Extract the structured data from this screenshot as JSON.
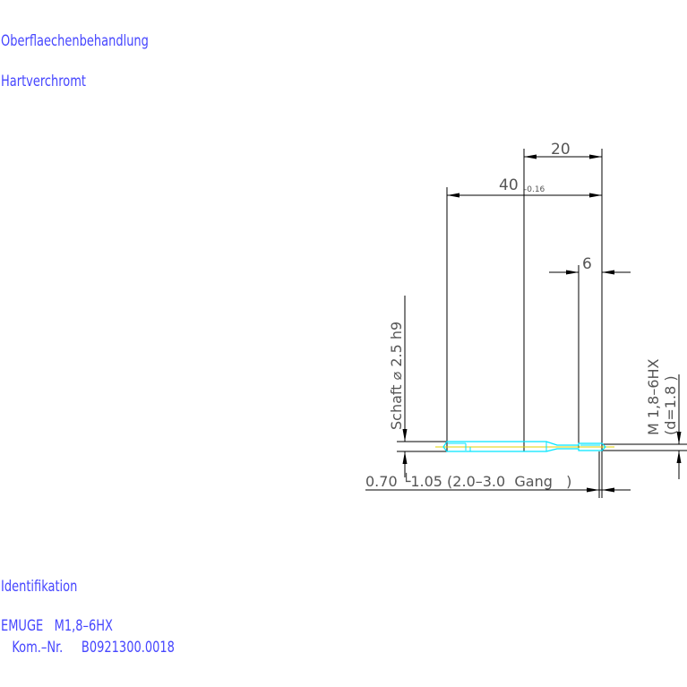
{
  "header": {
    "surface_label": "Oberflaechenbehandlung",
    "surface_value": "Hartverchromt"
  },
  "footer": {
    "ident_label": "Identifikation",
    "maker_line": "EMUGE   M1,8–6HX",
    "kom_line": "   Kom.–Nr.     B0921300.0018"
  },
  "drawing": {
    "dim_20": "20",
    "dim_40": "40",
    "dim_40_tol": "-0.16",
    "dim_6": "6",
    "shank": "Schaft  ⌀ 2.5  h9",
    "thread": "M 1,8–6HX",
    "thread_d": "(d=1.8 )",
    "chamfer": "0.70 └1.05 (2.0–3.0  Gang   )",
    "colors": {
      "lines": "#000000",
      "tool_outline": "#00e5ff",
      "centerline": "#e0d000",
      "label_text": "#4646ff",
      "dim_text": "#555555"
    }
  }
}
